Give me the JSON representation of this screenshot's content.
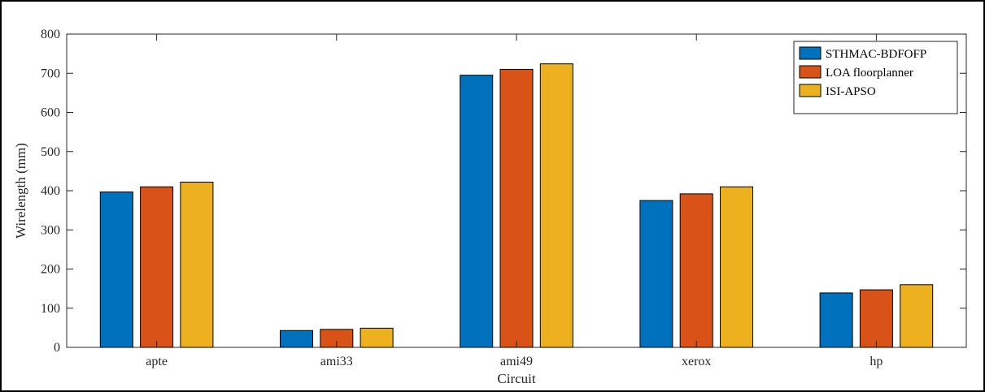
{
  "chart_data": {
    "type": "bar",
    "categories": [
      "apte",
      "ami33",
      "ami49",
      "xerox",
      "hp"
    ],
    "series": [
      {
        "name": "STHMAC-BDFOFP",
        "values": [
          397,
          43,
          695,
          375,
          139
        ],
        "color": "#0072BD"
      },
      {
        "name": "LOA floorplanner",
        "values": [
          410,
          46,
          710,
          392,
          147
        ],
        "color": "#D95319"
      },
      {
        "name": "ISI-APSO",
        "values": [
          422,
          49,
          724,
          410,
          160
        ],
        "color": "#EDB120"
      }
    ],
    "title": "",
    "xlabel": "Circuit",
    "ylabel": "Wirelength (mm)",
    "ylim": [
      0,
      800
    ],
    "yticks": [
      0,
      100,
      200,
      300,
      400,
      500,
      600,
      700,
      800
    ],
    "grid": false,
    "legend_position": "top-right"
  }
}
